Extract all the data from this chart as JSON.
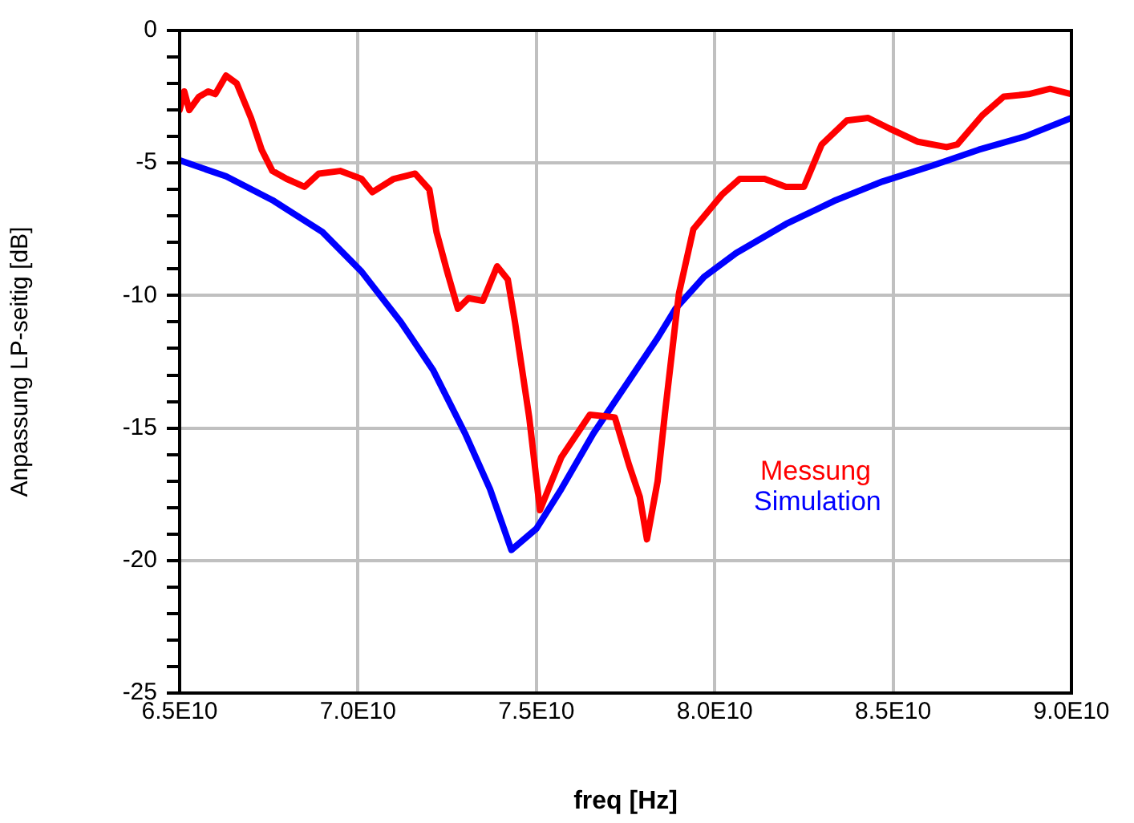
{
  "chart_data": {
    "type": "line",
    "xlabel": "freq [Hz]",
    "ylabel": "Anpassung LP-seitig [dB]",
    "xlim": [
      65000000000.0,
      90000000000.0
    ],
    "xticks": [
      {
        "value": 65000000000.0,
        "label": "6.5E10"
      },
      {
        "value": 70000000000.0,
        "label": "7.0E10"
      },
      {
        "value": 75000000000.0,
        "label": "7.5E10"
      },
      {
        "value": 80000000000.0,
        "label": "8.0E10"
      },
      {
        "value": 85000000000.0,
        "label": "8.5E10"
      },
      {
        "value": 90000000000.0,
        "label": "9.0E10"
      }
    ],
    "ylim": [
      -25,
      0
    ],
    "yticks": [
      -25,
      {
        "value": -24,
        "label": null
      },
      {
        "value": -23,
        "label": null
      },
      {
        "value": -22,
        "label": null
      },
      {
        "value": -21,
        "label": null
      },
      -20,
      {
        "value": -19,
        "label": null
      },
      {
        "value": -18,
        "label": null
      },
      {
        "value": -17,
        "label": null
      },
      {
        "value": -16,
        "label": null
      },
      -15,
      {
        "value": -14,
        "label": null
      },
      {
        "value": -13,
        "label": null
      },
      {
        "value": -12,
        "label": null
      },
      {
        "value": -11,
        "label": null
      },
      -10,
      {
        "value": -9,
        "label": null
      },
      {
        "value": -8,
        "label": null
      },
      {
        "value": -7,
        "label": null
      },
      {
        "value": -6,
        "label": null
      },
      -5,
      {
        "value": -4,
        "label": null
      },
      {
        "value": -3,
        "label": null
      },
      {
        "value": -2,
        "label": null
      },
      {
        "value": -1,
        "label": null
      },
      0
    ],
    "grid": true,
    "legend": "right",
    "marker": "none",
    "line_style": "solid",
    "series": [
      {
        "name": "Messung",
        "color": "#ff0000",
        "x": [
          65000000000.0,
          65130000000.0,
          65270000000.0,
          65540000000.0,
          65800000000.0,
          66000000000.0,
          66300000000.0,
          66600000000.0,
          67000000000.0,
          67300000000.0,
          67600000000.0,
          68000000000.0,
          68500000000.0,
          68900000000.0,
          69500000000.0,
          70100000000.0,
          70400000000.0,
          71000000000.0,
          71600000000.0,
          72000000000.0,
          72200000000.0,
          72500000000.0,
          72800000000.0,
          73100000000.0,
          73500000000.0,
          73900000000.0,
          74200000000.0,
          74400000000.0,
          74800000000.0,
          75100000000.0,
          75700000000.0,
          76100000000.0,
          76500000000.0,
          77200000000.0,
          77600000000.0,
          77900000000.0,
          78100000000.0,
          78400000000.0,
          78600000000.0,
          78900000000.0,
          79000000000.0,
          79400000000.0,
          80200000000.0,
          80700000000.0,
          81400000000.0,
          82000000000.0,
          82500000000.0,
          83000000000.0,
          83700000000.0,
          84300000000.0,
          84900000000.0,
          85700000000.0,
          86500000000.0,
          86800000000.0,
          87500000000.0,
          88100000000.0,
          88800000000.0,
          89400000000.0,
          90000000000.0
        ],
        "values": [
          -3.0,
          -2.3,
          -3.0,
          -2.5,
          -2.3,
          -2.4,
          -1.7,
          -2.0,
          -3.3,
          -4.5,
          -5.3,
          -5.6,
          -5.9,
          -5.4,
          -5.3,
          -5.6,
          -6.1,
          -5.6,
          -5.4,
          -6.0,
          -7.6,
          -9.1,
          -10.5,
          -10.1,
          -10.2,
          -8.9,
          -9.4,
          -11.0,
          -14.6,
          -18.1,
          -16.1,
          -15.3,
          -14.5,
          -14.6,
          -16.4,
          -17.6,
          -19.2,
          -17.0,
          -14.5,
          -11.0,
          -9.9,
          -7.5,
          -6.2,
          -5.6,
          -5.6,
          -5.9,
          -5.9,
          -4.3,
          -3.4,
          -3.3,
          -3.7,
          -4.2,
          -4.4,
          -4.3,
          -3.2,
          -2.5,
          -2.4,
          -2.2,
          -2.4
        ]
      },
      {
        "name": "Simulation",
        "color": "#0000ff",
        "x": [
          65000000000.0,
          66300000000.0,
          67600000000.0,
          69000000000.0,
          70100000000.0,
          71200000000.0,
          72100000000.0,
          73000000000.0,
          73700000000.0,
          74300000000.0,
          75000000000.0,
          75700000000.0,
          76600000000.0,
          77500000000.0,
          78400000000.0,
          78900000000.0,
          79700000000.0,
          80600000000.0,
          82000000000.0,
          83400000000.0,
          84700000000.0,
          86100000000.0,
          87400000000.0,
          88700000000.0,
          90000000000.0
        ],
        "values": [
          -4.9,
          -5.5,
          -6.4,
          -7.6,
          -9.1,
          -11.0,
          -12.8,
          -15.2,
          -17.3,
          -19.6,
          -18.8,
          -17.3,
          -15.2,
          -13.4,
          -11.6,
          -10.5,
          -9.3,
          -8.4,
          -7.3,
          -6.4,
          -5.7,
          -5.1,
          -4.5,
          -4.0,
          -3.3
        ]
      }
    ]
  }
}
